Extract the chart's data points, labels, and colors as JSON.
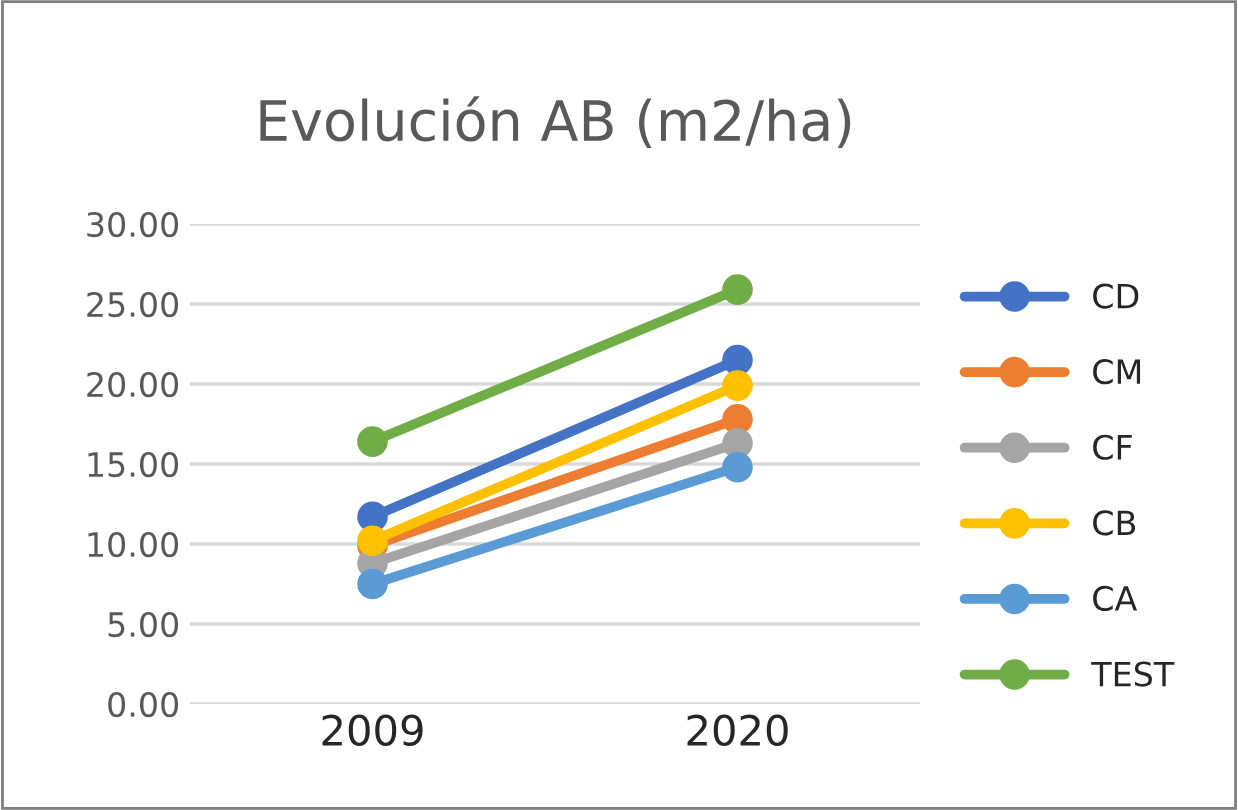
{
  "chart_data": {
    "type": "line",
    "title": "Evolución AB (m2/ha)",
    "categories": [
      "2009",
      "2020"
    ],
    "series": [
      {
        "name": "CD",
        "color": "#4472c4",
        "values": [
          11.7,
          21.5
        ]
      },
      {
        "name": "CM",
        "color": "#ed7d31",
        "values": [
          9.9,
          17.8
        ]
      },
      {
        "name": "CF",
        "color": "#a5a5a5",
        "values": [
          8.8,
          16.3
        ]
      },
      {
        "name": "CB",
        "color": "#ffc000",
        "values": [
          10.2,
          19.9
        ]
      },
      {
        "name": "CA",
        "color": "#5b9bd5",
        "values": [
          7.5,
          14.8
        ]
      },
      {
        "name": "TEST",
        "color": "#70ad47",
        "values": [
          16.4,
          25.9
        ]
      }
    ],
    "ylim": [
      0,
      30
    ],
    "yticks": [
      {
        "value": 0,
        "label": "0.00"
      },
      {
        "value": 5,
        "label": "5.00"
      },
      {
        "value": 10,
        "label": "10.00"
      },
      {
        "value": 15,
        "label": "15.00"
      },
      {
        "value": 20,
        "label": "20.00"
      },
      {
        "value": 25,
        "label": "25.00"
      },
      {
        "value": 30,
        "label": "30.00"
      }
    ],
    "grid": "y",
    "legend": "right",
    "marker": "circle",
    "line_style": "solid"
  }
}
